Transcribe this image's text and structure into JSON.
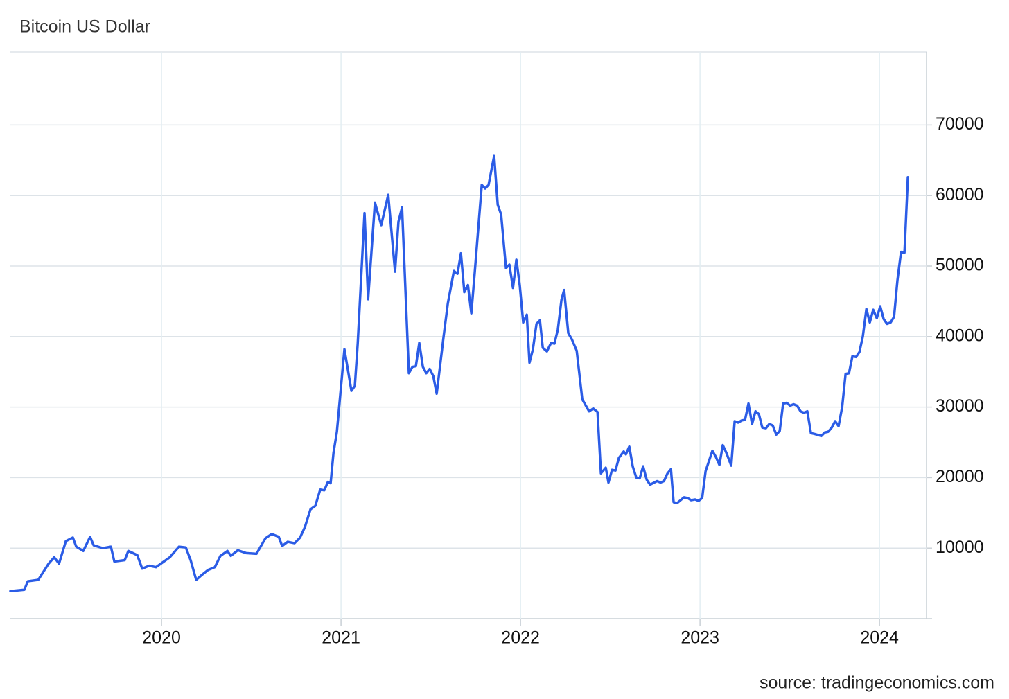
{
  "chart_data": {
    "type": "line",
    "title": "Bitcoin US Dollar",
    "source": "source: tradingeconomics.com",
    "color": "#2b5ce6",
    "grid": true,
    "xlim": [
      2019.158,
      2024.262
    ],
    "xticks": [
      2020,
      2021,
      2022,
      2023,
      2024
    ],
    "ylim": [
      0,
      80000
    ],
    "yticks": [
      10000,
      20000,
      30000,
      40000,
      50000,
      60000,
      70000
    ],
    "x": [
      2019.158,
      2019.236,
      2019.255,
      2019.313,
      2019.371,
      2019.402,
      2019.429,
      2019.467,
      2019.506,
      2019.525,
      2019.564,
      2019.602,
      2019.622,
      2019.672,
      2019.718,
      2019.737,
      2019.795,
      2019.815,
      2019.865,
      2019.892,
      2019.931,
      2019.969,
      2020.046,
      2020.097,
      2020.135,
      2020.162,
      2020.193,
      2020.22,
      2020.259,
      2020.297,
      2020.328,
      2020.367,
      2020.386,
      2020.425,
      2020.471,
      2020.529,
      2020.579,
      2020.614,
      2020.653,
      2020.672,
      2020.703,
      2020.741,
      2020.772,
      2020.799,
      2020.83,
      2020.857,
      2020.884,
      2020.907,
      2020.927,
      2020.942,
      2020.958,
      2020.977,
      2021.019,
      2021.058,
      2021.077,
      2021.093,
      2021.131,
      2021.151,
      2021.189,
      2021.224,
      2021.263,
      2021.301,
      2021.32,
      2021.34,
      2021.378,
      2021.398,
      2021.417,
      2021.436,
      2021.456,
      2021.475,
      2021.494,
      2021.514,
      2021.533,
      2021.571,
      2021.595,
      2021.629,
      2021.649,
      2021.668,
      2021.687,
      2021.707,
      2021.726,
      2021.745,
      2021.784,
      2021.803,
      2021.822,
      2021.853,
      2021.873,
      2021.892,
      2021.919,
      2021.938,
      2021.958,
      2021.977,
      2021.996,
      2022.015,
      2022.035,
      2022.05,
      2022.069,
      2022.089,
      2022.108,
      2022.124,
      2022.147,
      2022.17,
      2022.189,
      2022.208,
      2022.228,
      2022.243,
      2022.266,
      2022.286,
      2022.313,
      2022.344,
      2022.382,
      2022.405,
      2022.429,
      2022.448,
      2022.475,
      2022.49,
      2022.51,
      2022.529,
      2022.548,
      2022.575,
      2022.587,
      2022.606,
      2022.625,
      2022.645,
      2022.664,
      2022.683,
      2022.703,
      2022.722,
      2022.761,
      2022.78,
      2022.799,
      2022.819,
      2022.838,
      2022.853,
      2022.873,
      2022.911,
      2022.931,
      2022.95,
      2022.973,
      2022.992,
      2023.012,
      2023.031,
      2023.069,
      2023.089,
      2023.108,
      2023.127,
      2023.147,
      2023.174,
      2023.193,
      2023.212,
      2023.232,
      2023.251,
      2023.27,
      2023.29,
      2023.309,
      2023.328,
      2023.347,
      2023.367,
      2023.386,
      2023.405,
      2023.425,
      2023.444,
      2023.463,
      2023.483,
      2023.502,
      2023.521,
      2023.541,
      2023.56,
      2023.579,
      2023.598,
      2023.618,
      2023.637,
      2023.676,
      2023.695,
      2023.714,
      2023.734,
      2023.753,
      2023.772,
      2023.792,
      2023.811,
      2023.83,
      2023.849,
      2023.869,
      2023.888,
      2023.907,
      2023.927,
      2023.946,
      2023.965,
      2023.985,
      2024.004,
      2024.023,
      2024.042,
      2024.062,
      2024.081,
      2024.1,
      2024.12,
      2024.139,
      2024.158
    ],
    "values": [
      3900,
      4100,
      5300,
      5500,
      7800,
      8700,
      7800,
      11000,
      11500,
      10200,
      9600,
      11600,
      10400,
      10000,
      10200,
      8100,
      8300,
      9600,
      9000,
      7100,
      7500,
      7300,
      8700,
      10200,
      10100,
      8300,
      5500,
      6100,
      6900,
      7300,
      8900,
      9600,
      8900,
      9700,
      9300,
      9200,
      11400,
      12000,
      11600,
      10300,
      10900,
      10700,
      11500,
      13000,
      15500,
      16000,
      18300,
      18200,
      19400,
      19200,
      23500,
      26500,
      38200,
      32300,
      33000,
      39000,
      57500,
      45300,
      59000,
      55800,
      60100,
      49200,
      56300,
      58300,
      34800,
      35700,
      35800,
      39100,
      35700,
      34800,
      35400,
      34400,
      31900,
      39900,
      44700,
      49300,
      48900,
      51800,
      46300,
      47300,
      43300,
      49100,
      61500,
      61000,
      61500,
      65600,
      58700,
      57300,
      49700,
      50200,
      46900,
      50900,
      47200,
      42000,
      43100,
      36300,
      38200,
      41800,
      42300,
      38400,
      37900,
      39100,
      39000,
      41000,
      45200,
      46600,
      40500,
      39600,
      38000,
      31100,
      29400,
      29800,
      29300,
      20600,
      21400,
      19300,
      21100,
      21000,
      22800,
      23700,
      23300,
      24400,
      21600,
      20000,
      19900,
      21600,
      19700,
      19000,
      19500,
      19300,
      19500,
      20600,
      21200,
      16500,
      16400,
      17200,
      17100,
      16800,
      16900,
      16700,
      17100,
      20900,
      23800,
      22900,
      21800,
      24600,
      23500,
      21700,
      28000,
      27800,
      28100,
      28200,
      30500,
      27600,
      29400,
      29000,
      27100,
      27000,
      27600,
      27400,
      26100,
      26600,
      30500,
      30600,
      30200,
      30400,
      30200,
      29400,
      29200,
      29400,
      26300,
      26200,
      25900,
      26400,
      26500,
      27100,
      28000,
      27300,
      30000,
      34700,
      34800,
      37200,
      37100,
      37800,
      40000,
      43900,
      42000,
      43800,
      42600,
      44300,
      42500,
      41800,
      42000,
      42800,
      48000,
      52000,
      51900,
      62600
    ]
  }
}
